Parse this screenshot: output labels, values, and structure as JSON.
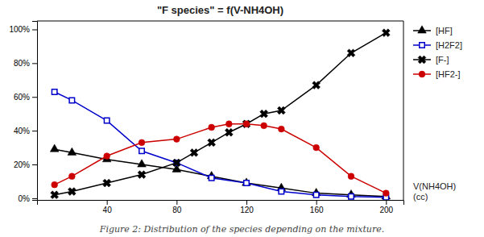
{
  "chart_data": {
    "type": "line",
    "title": "\"F species\" = f(V-NH4OH)",
    "annotation": "V(NH4OH)\n(cc)",
    "caption": "Figure 2:  Distribution of the species depending on the mixture.",
    "xlim": [
      0,
      210
    ],
    "xticks": [
      40,
      80,
      120,
      160,
      200
    ],
    "ylim": [
      -0.01,
      1.05
    ],
    "yticks": [
      {
        "value": 0.0,
        "label": "0%"
      },
      {
        "value": 0.2,
        "label": "20%"
      },
      {
        "value": 0.4,
        "label": "40%"
      },
      {
        "value": 0.6,
        "label": "60%"
      },
      {
        "value": 0.8,
        "label": "80%"
      },
      {
        "value": 1.0,
        "label": "100%"
      }
    ],
    "grid": false,
    "legend": "upper right",
    "series": [
      {
        "name": "[HF]",
        "color": "#000000",
        "marker": "triangle",
        "line_style": "solid",
        "x": [
          10,
          20,
          40,
          60,
          80,
          100,
          120,
          140,
          160,
          180,
          200
        ],
        "values": [
          0.29,
          0.27,
          0.23,
          0.2,
          0.17,
          0.13,
          0.09,
          0.06,
          0.03,
          0.02,
          0.01
        ]
      },
      {
        "name": "[H2F2]",
        "color": "#0000cc",
        "marker": "square",
        "line_style": "solid",
        "x": [
          10,
          20,
          40,
          60,
          80,
          100,
          120,
          140,
          160,
          180,
          200
        ],
        "values": [
          0.63,
          0.58,
          0.46,
          0.28,
          0.21,
          0.12,
          0.09,
          0.04,
          0.02,
          0.01,
          0.005
        ]
      },
      {
        "name": "[F-]",
        "color": "#000000",
        "marker": "x",
        "line_style": "solid",
        "x": [
          10,
          20,
          40,
          60,
          80,
          90,
          100,
          110,
          120,
          130,
          140,
          160,
          180,
          200
        ],
        "values": [
          0.02,
          0.04,
          0.09,
          0.14,
          0.21,
          0.27,
          0.33,
          0.39,
          0.44,
          0.5,
          0.52,
          0.67,
          0.86,
          0.98
        ]
      },
      {
        "name": "[HF2-]",
        "color": "#cc0000",
        "marker": "circle",
        "line_style": "solid",
        "x": [
          10,
          20,
          40,
          60,
          80,
          100,
          110,
          120,
          130,
          140,
          160,
          180,
          200
        ],
        "values": [
          0.08,
          0.13,
          0.25,
          0.33,
          0.35,
          0.42,
          0.44,
          0.44,
          0.43,
          0.41,
          0.3,
          0.13,
          0.03
        ]
      }
    ]
  }
}
